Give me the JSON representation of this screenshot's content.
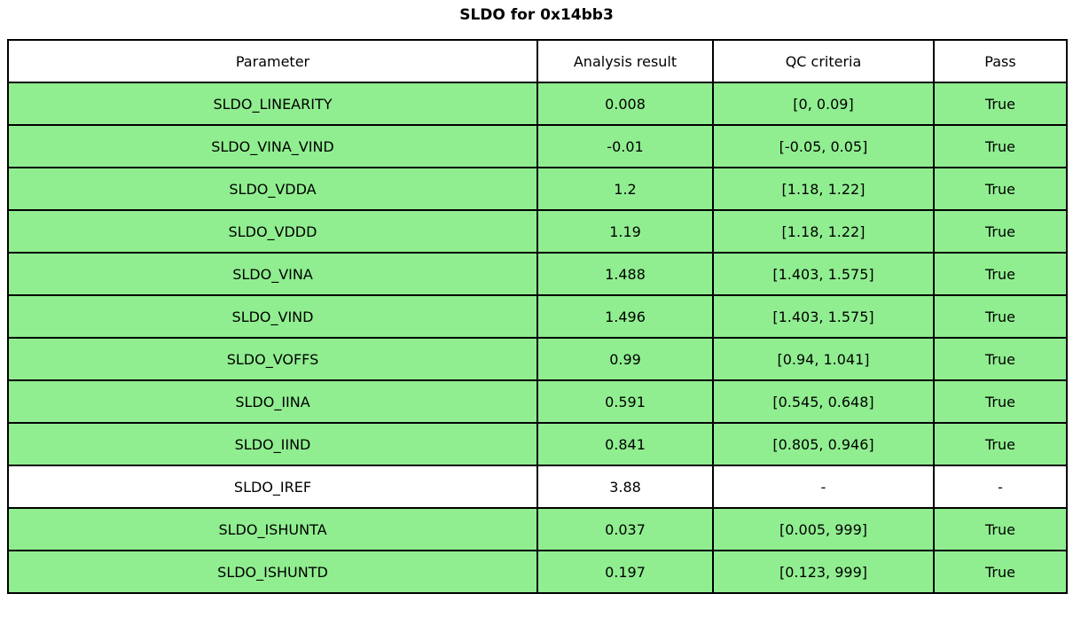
{
  "page_title": "SLDO for 0x14bb3",
  "colors": {
    "pass_row_bg": "#90EE90",
    "neutral_row_bg": "#FFFFFF",
    "border": "#000000",
    "text": "#000000"
  },
  "table": {
    "columns": [
      {
        "key": "parameter",
        "label": "Parameter"
      },
      {
        "key": "result",
        "label": "Analysis result"
      },
      {
        "key": "criteria",
        "label": "QC criteria"
      },
      {
        "key": "pass",
        "label": "Pass"
      }
    ],
    "rows": [
      {
        "parameter": "SLDO_LINEARITY",
        "result": "0.008",
        "criteria": "[0, 0.09]",
        "pass": "True",
        "highlighted": true
      },
      {
        "parameter": "SLDO_VINA_VIND",
        "result": "-0.01",
        "criteria": "[-0.05, 0.05]",
        "pass": "True",
        "highlighted": true
      },
      {
        "parameter": "SLDO_VDDA",
        "result": "1.2",
        "criteria": "[1.18, 1.22]",
        "pass": "True",
        "highlighted": true
      },
      {
        "parameter": "SLDO_VDDD",
        "result": "1.19",
        "criteria": "[1.18, 1.22]",
        "pass": "True",
        "highlighted": true
      },
      {
        "parameter": "SLDO_VINA",
        "result": "1.488",
        "criteria": "[1.403, 1.575]",
        "pass": "True",
        "highlighted": true
      },
      {
        "parameter": "SLDO_VIND",
        "result": "1.496",
        "criteria": "[1.403, 1.575]",
        "pass": "True",
        "highlighted": true
      },
      {
        "parameter": "SLDO_VOFFS",
        "result": "0.99",
        "criteria": "[0.94, 1.041]",
        "pass": "True",
        "highlighted": true
      },
      {
        "parameter": "SLDO_IINA",
        "result": "0.591",
        "criteria": "[0.545, 0.648]",
        "pass": "True",
        "highlighted": true
      },
      {
        "parameter": "SLDO_IIND",
        "result": "0.841",
        "criteria": "[0.805, 0.946]",
        "pass": "True",
        "highlighted": true
      },
      {
        "parameter": "SLDO_IREF",
        "result": "3.88",
        "criteria": "-",
        "pass": "-",
        "highlighted": false
      },
      {
        "parameter": "SLDO_ISHUNTA",
        "result": "0.037",
        "criteria": "[0.005, 999]",
        "pass": "True",
        "highlighted": true
      },
      {
        "parameter": "SLDO_ISHUNTD",
        "result": "0.197",
        "criteria": "[0.123, 999]",
        "pass": "True",
        "highlighted": true
      }
    ]
  },
  "chart_data": {
    "type": "table",
    "title": "SLDO for 0x14bb3",
    "columns": [
      "Parameter",
      "Analysis result",
      "QC criteria",
      "Pass"
    ],
    "rows": [
      [
        "SLDO_LINEARITY",
        "0.008",
        "[0, 0.09]",
        "True"
      ],
      [
        "SLDO_VINA_VIND",
        "-0.01",
        "[-0.05, 0.05]",
        "True"
      ],
      [
        "SLDO_VDDA",
        "1.2",
        "[1.18, 1.22]",
        "True"
      ],
      [
        "SLDO_VDDD",
        "1.19",
        "[1.18, 1.22]",
        "True"
      ],
      [
        "SLDO_VINA",
        "1.488",
        "[1.403, 1.575]",
        "True"
      ],
      [
        "SLDO_VIND",
        "1.496",
        "[1.403, 1.575]",
        "True"
      ],
      [
        "SLDO_VOFFS",
        "0.99",
        "[0.94, 1.041]",
        "True"
      ],
      [
        "SLDO_IINA",
        "0.591",
        "[0.545, 0.648]",
        "True"
      ],
      [
        "SLDO_IIND",
        "0.841",
        "[0.805, 0.946]",
        "True"
      ],
      [
        "SLDO_IREF",
        "3.88",
        "-",
        "-"
      ],
      [
        "SLDO_ISHUNTA",
        "0.037",
        "[0.005, 999]",
        "True"
      ],
      [
        "SLDO_ISHUNTD",
        "0.197",
        "[0.123, 999]",
        "True"
      ]
    ],
    "legend_position": "none",
    "grid": true,
    "notes": "Rows with passing QC are filled light green; SLDO_IREF row (no QC criteria) is white."
  }
}
